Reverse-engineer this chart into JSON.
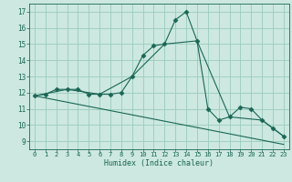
{
  "title": "",
  "xlabel": "Humidex (Indice chaleur)",
  "background_color": "#cce8e0",
  "grid_color": "#99ccbb",
  "line_color": "#1a6655",
  "xlim": [
    -0.5,
    23.5
  ],
  "ylim": [
    8.5,
    17.5
  ],
  "yticks": [
    9,
    10,
    11,
    12,
    13,
    14,
    15,
    16,
    17
  ],
  "xticks": [
    0,
    1,
    2,
    3,
    4,
    5,
    6,
    7,
    8,
    9,
    10,
    11,
    12,
    13,
    14,
    15,
    16,
    17,
    18,
    19,
    20,
    21,
    22,
    23
  ],
  "series1": {
    "x": [
      0,
      1,
      2,
      3,
      4,
      5,
      6,
      7,
      8,
      9,
      10,
      11,
      12,
      13,
      14,
      15,
      16,
      17,
      18,
      19,
      20,
      21,
      22,
      23
    ],
    "y": [
      11.8,
      11.9,
      12.2,
      12.2,
      12.2,
      11.9,
      11.9,
      11.9,
      12.0,
      13.0,
      14.3,
      14.9,
      15.0,
      16.5,
      17.0,
      15.2,
      11.0,
      10.3,
      10.5,
      11.1,
      11.0,
      10.3,
      9.8,
      9.3
    ]
  },
  "series2": {
    "x": [
      0,
      3,
      6,
      9,
      12,
      15,
      18,
      21,
      23
    ],
    "y": [
      11.8,
      12.2,
      11.9,
      13.0,
      15.0,
      15.2,
      10.5,
      10.3,
      9.3
    ]
  },
  "series3": {
    "x": [
      0,
      23
    ],
    "y": [
      11.8,
      8.8
    ]
  }
}
